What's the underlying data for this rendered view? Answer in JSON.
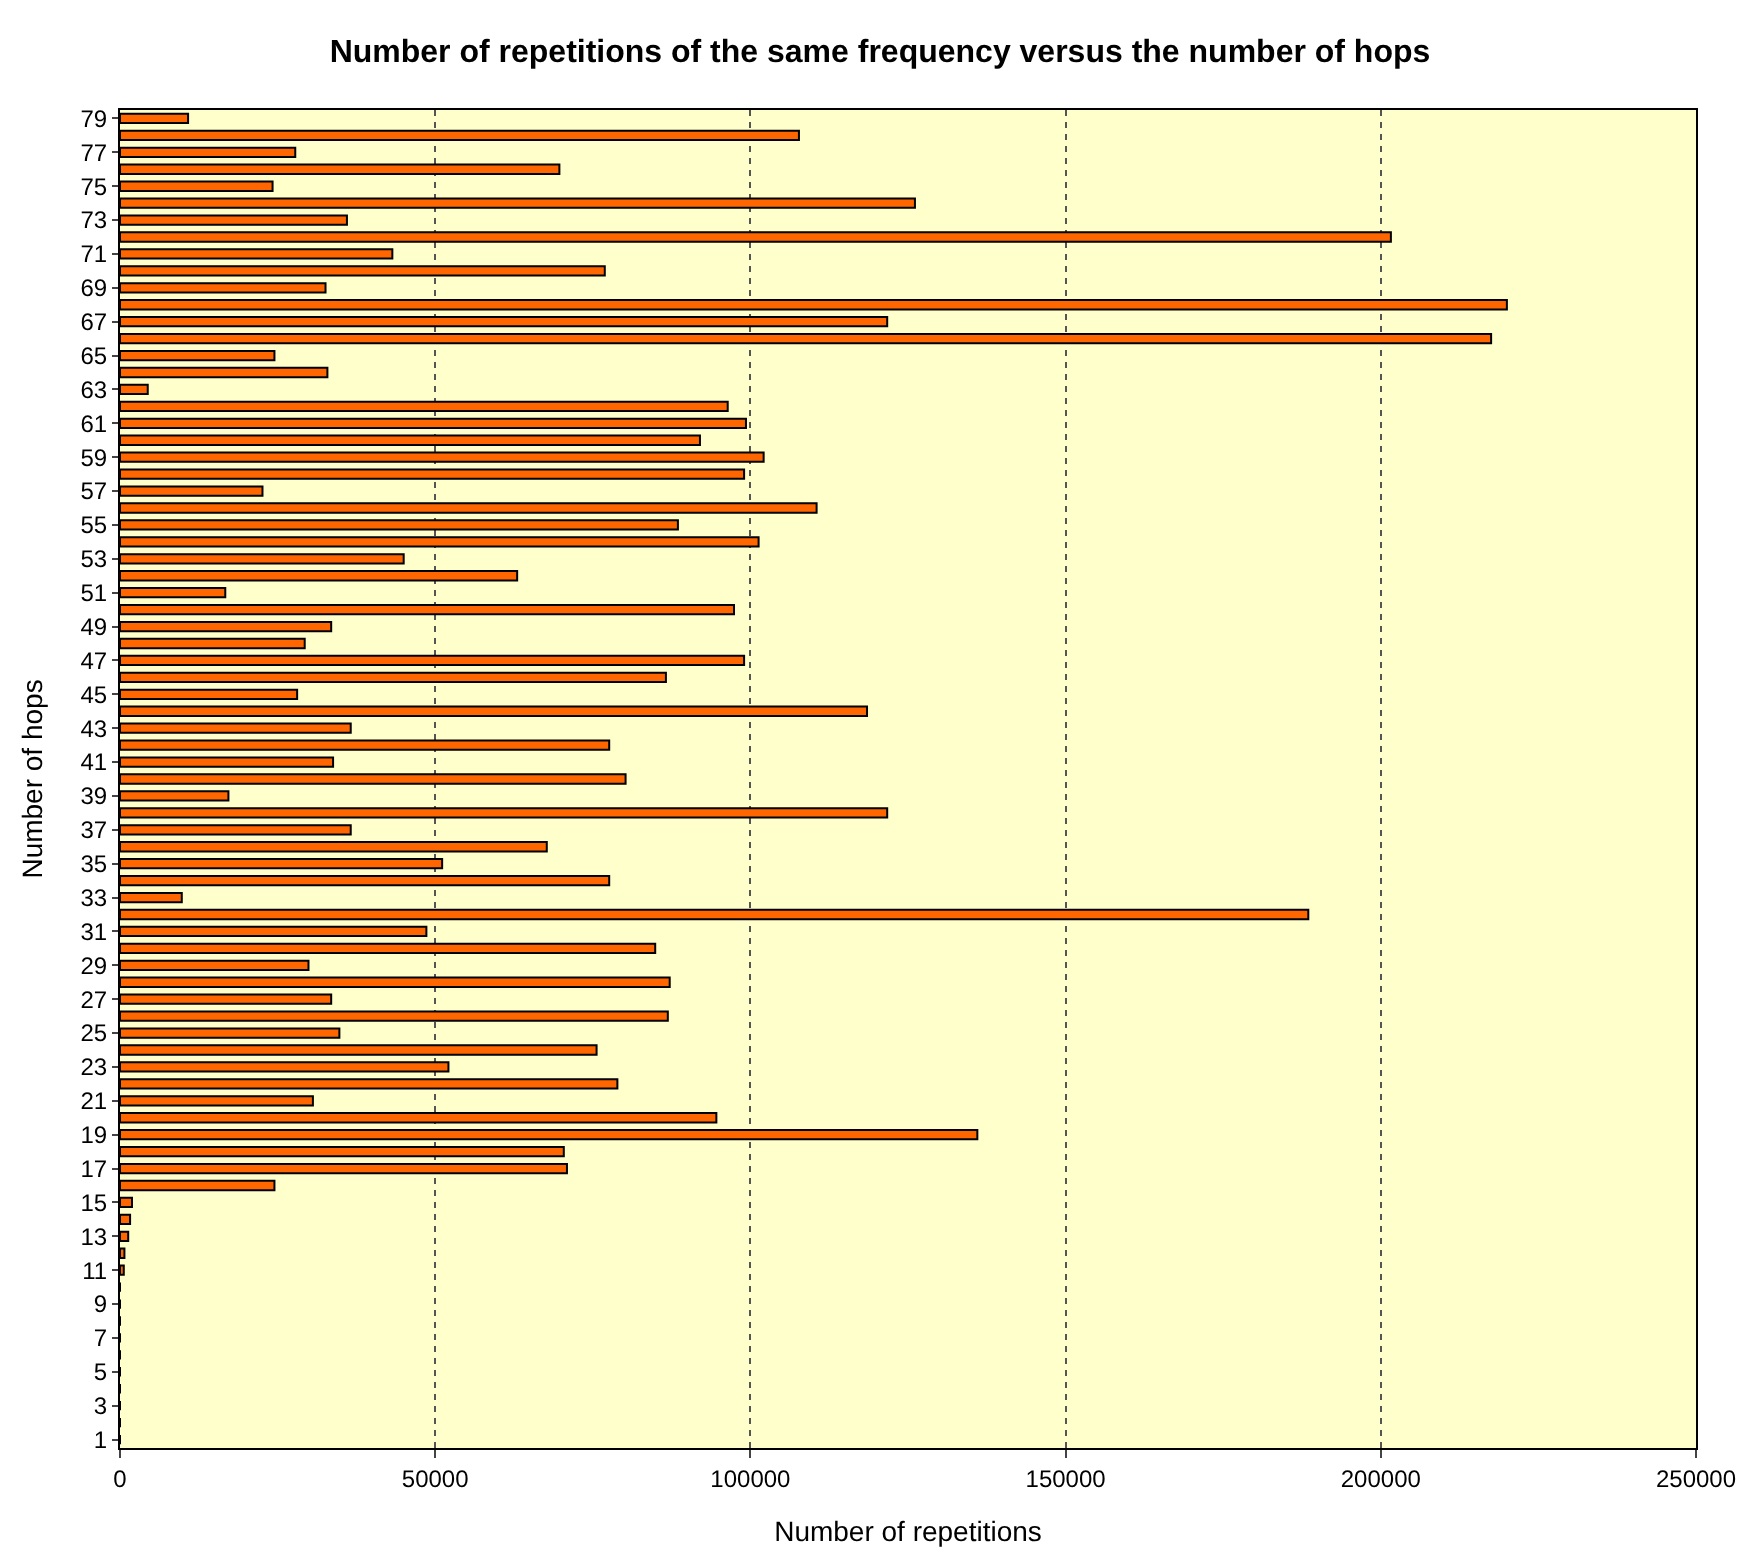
{
  "chart_data": {
    "type": "bar",
    "orientation": "horizontal",
    "title": "Number of repetitions of the same frequency versus the number of hops",
    "xlabel": "Number of repetitions",
    "ylabel": "Number of hops",
    "categories": [
      "79",
      null,
      "77",
      null,
      "75",
      null,
      "73",
      null,
      "71",
      null,
      "69",
      null,
      "67",
      null,
      "65",
      null,
      "63",
      null,
      "61",
      null,
      "59",
      null,
      "57",
      null,
      "55",
      null,
      "53",
      null,
      "51",
      null,
      "49",
      null,
      "47",
      null,
      "45",
      null,
      "43",
      null,
      "41",
      null,
      "39",
      null,
      "37",
      null,
      "35",
      null,
      "33",
      null,
      "31",
      null,
      "29",
      null,
      "27",
      null,
      "25",
      null,
      "23",
      null,
      "21",
      null,
      "19",
      null,
      "17",
      null,
      "15",
      null,
      "13",
      null,
      "11",
      null,
      "9",
      null,
      "7",
      null,
      "5",
      null,
      "3",
      null,
      "1"
    ],
    "values": [
      10800,
      107700,
      27800,
      69700,
      24200,
      126100,
      36000,
      201600,
      43200,
      76900,
      32600,
      220000,
      121700,
      217500,
      24500,
      32900,
      4400,
      96400,
      99300,
      92000,
      102100,
      99000,
      22600,
      110500,
      88500,
      101300,
      45000,
      63000,
      16700,
      97400,
      33500,
      29300,
      99000,
      86600,
      28100,
      118500,
      36600,
      77600,
      33800,
      80200,
      17200,
      121700,
      36600,
      67700,
      51100,
      77600,
      9800,
      188500,
      48600,
      84900,
      29900,
      87200,
      33500,
      86900,
      34800,
      75600,
      52100,
      78900,
      30600,
      94600,
      136000,
      70400,
      70900,
      24500,
      1900,
      1600,
      1300,
      700,
      600,
      0,
      0,
      0,
      0,
      0,
      0,
      0,
      0,
      0,
      0
    ],
    "color": "#ff6600",
    "xlim": [
      0,
      250000
    ],
    "xticks": [
      0,
      50000,
      100000,
      150000,
      200000,
      250000
    ],
    "grid": "x"
  }
}
